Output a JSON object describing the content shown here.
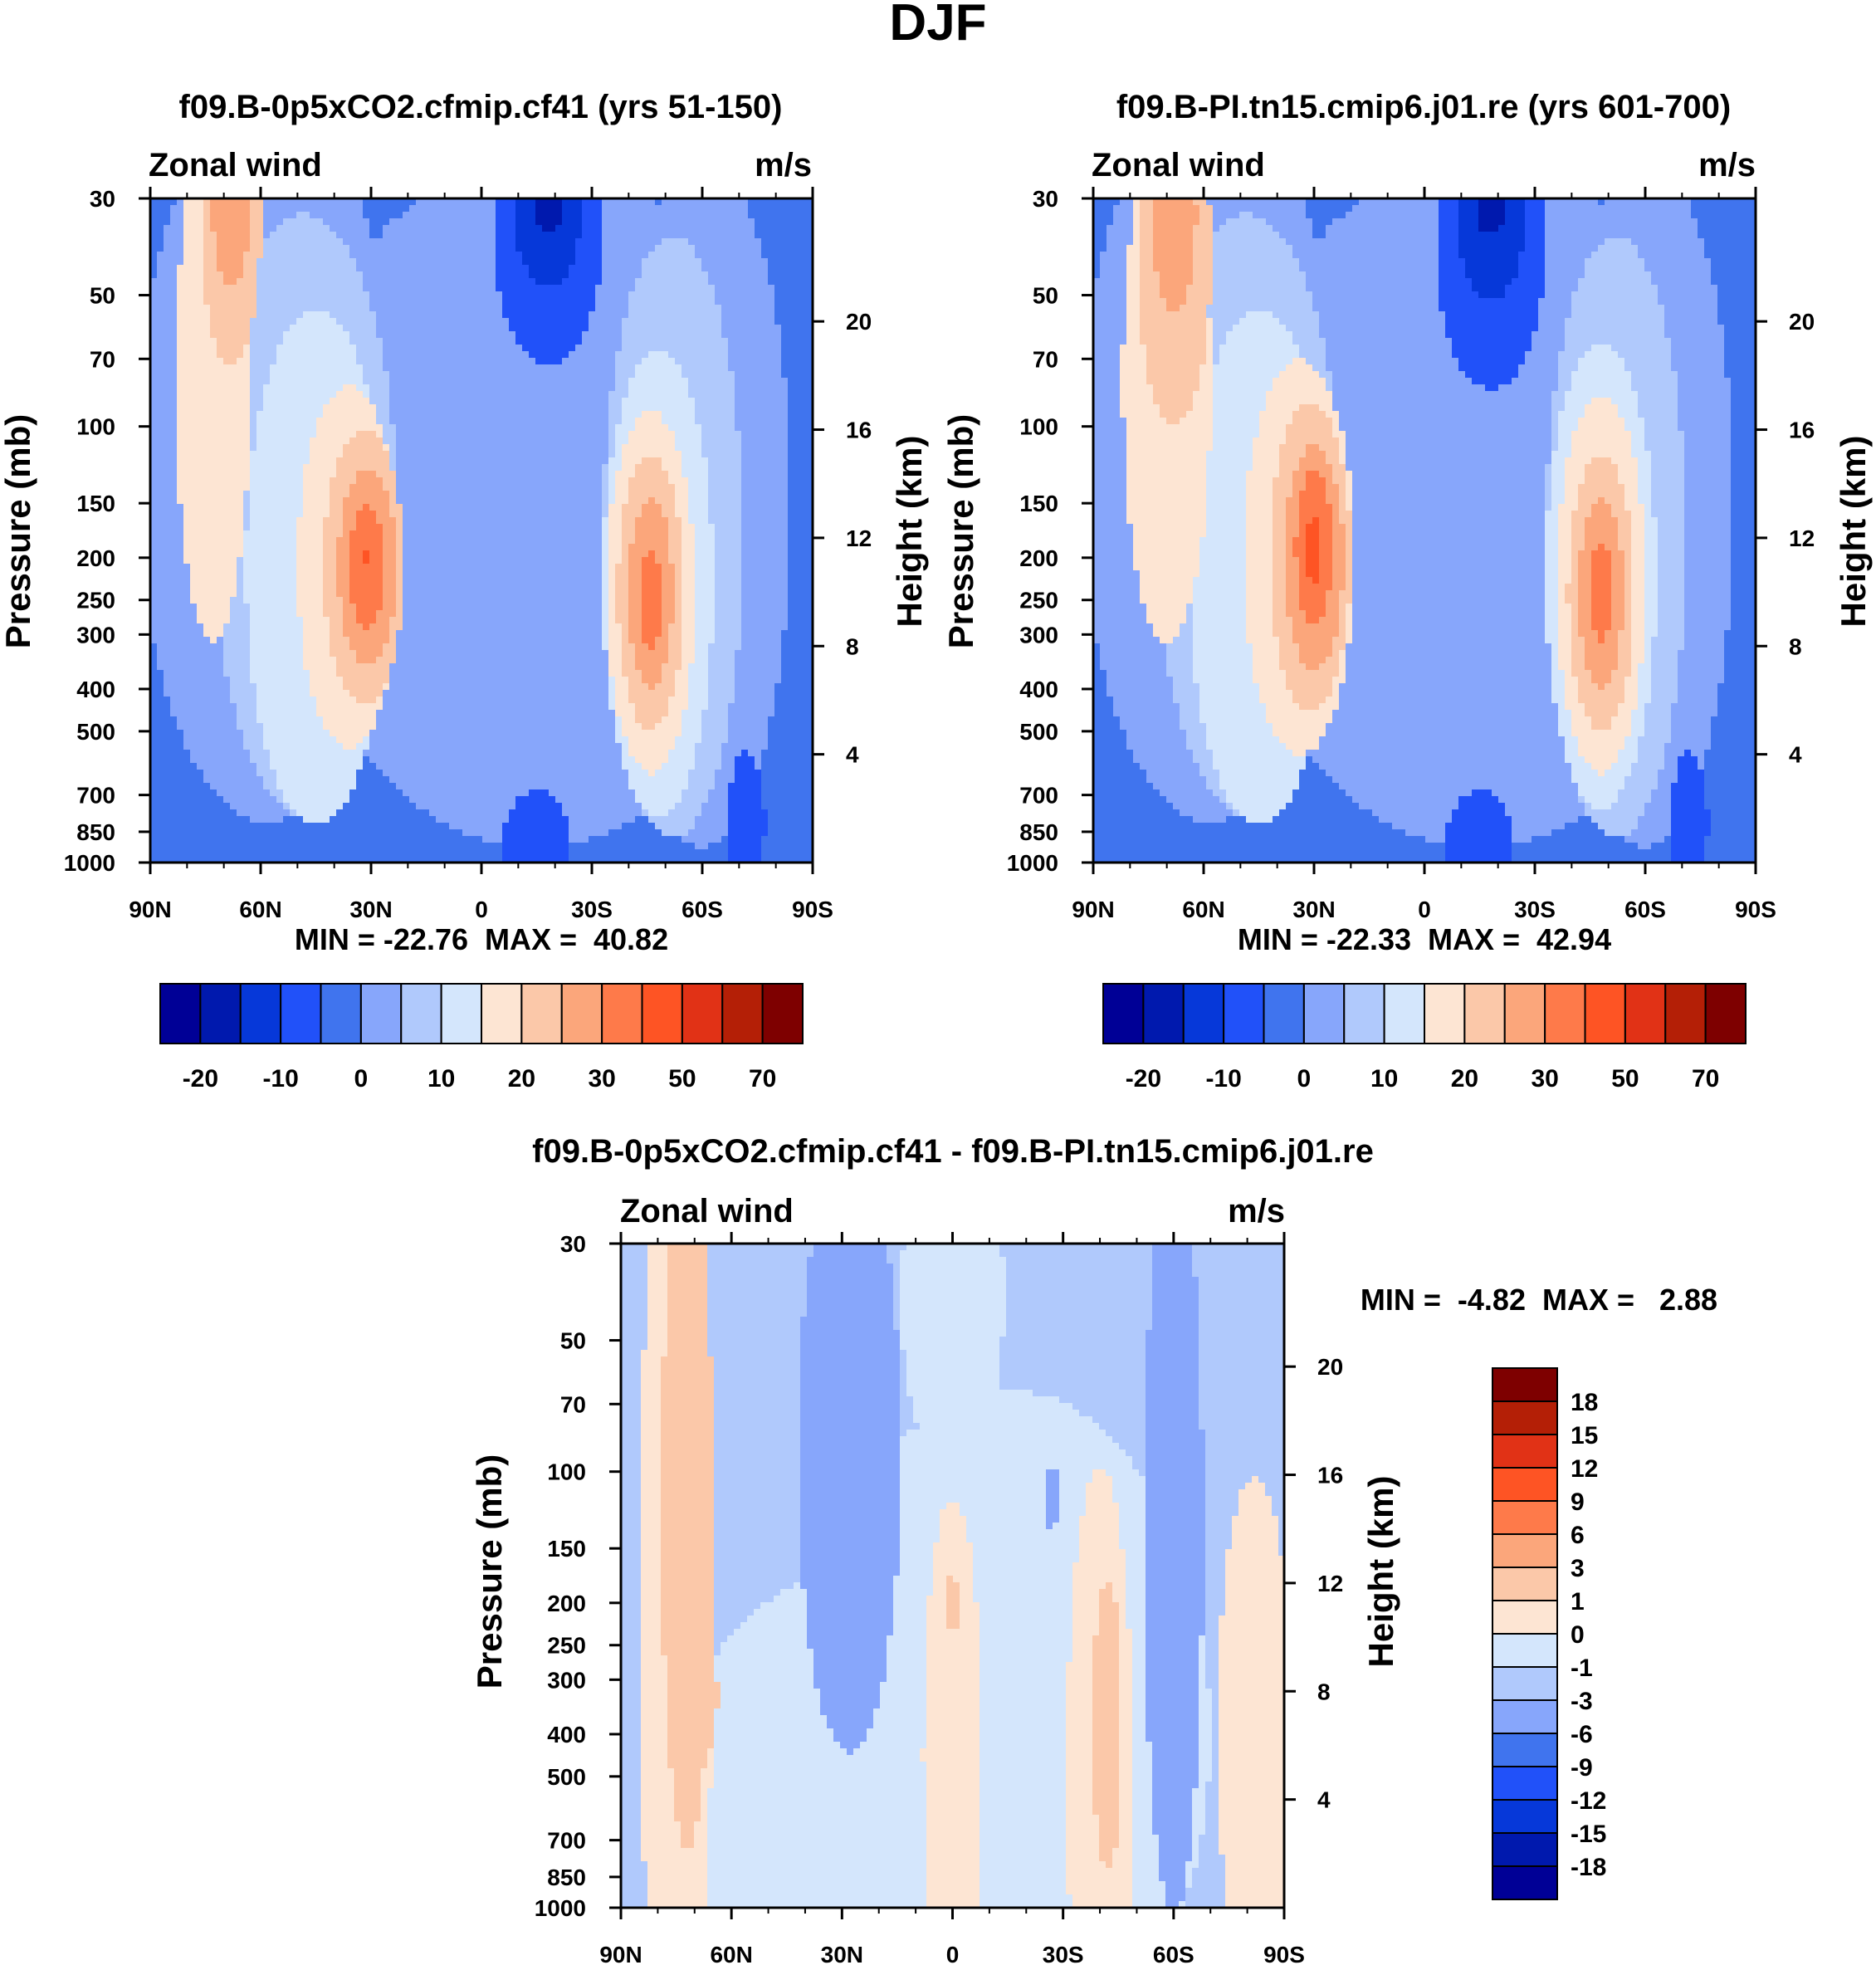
{
  "figure_title": "DJF",
  "colors": {
    "scale": [
      "#000096",
      "#0019AE",
      "#0638D9",
      "#2151F9",
      "#4074EE",
      "#87A6FB",
      "#B0C9FC",
      "#D4E6FC",
      "#FDE5D3",
      "#FBC8A9",
      "#FBA67B",
      "#FE7A4A",
      "#FE5424",
      "#E13216",
      "#B41F06",
      "#7E0000"
    ],
    "diff_scale": [
      "#000096",
      "#0019AE",
      "#0638D9",
      "#2151F9",
      "#4074EE",
      "#87A6FB",
      "#B0C9FC",
      "#D4E6FC",
      "#FDE5D3",
      "#FBC8A9",
      "#FBA67B",
      "#FE7A4A",
      "#FE5424",
      "#E13216",
      "#B41F06",
      "#7E0000"
    ]
  },
  "chart_data": [
    {
      "type": "heatmap",
      "title": "f09.B-0p5xCO2.cfmip.cf41 (yrs 51-150)",
      "left_label": "Zonal wind",
      "right_label": "m/s",
      "ylabel": "Pressure (mb)",
      "ylabel_right": "Height (km)",
      "xlabel": "",
      "x_range": [
        -90,
        90
      ],
      "x_ticks": [
        -90,
        -60,
        -30,
        0,
        30,
        60,
        90
      ],
      "x_tick_labels": [
        "90N",
        "60N",
        "30N",
        "0",
        "30S",
        "60S",
        "90S"
      ],
      "y_range_mb": [
        1000,
        30
      ],
      "y_ticks": [
        30,
        50,
        70,
        100,
        150,
        200,
        250,
        300,
        400,
        500,
        700,
        850,
        1000
      ],
      "y_tick_labels": [
        "30",
        "50",
        "70",
        "100",
        "150",
        "200",
        "250",
        "300",
        "400",
        "500",
        "700",
        "850",
        "1000"
      ],
      "height_ticks_km": [
        4,
        8,
        12,
        16,
        20
      ],
      "height_tick_labels": [
        "4",
        "8",
        "12",
        "16",
        "20"
      ],
      "stats_text": "MIN = -22.76  MAX =  40.82",
      "min": -22.76,
      "max": 40.82,
      "background_level": 4,
      "features": [
        {
          "level": 5,
          "lat": 15,
          "p": 150,
          "wlat": 68,
          "wlp": 4.0
        },
        {
          "level": 3,
          "lat": 18,
          "p": 35,
          "wlat": 15,
          "wlp": 1.6
        },
        {
          "level": 2,
          "lat": 18,
          "p": 33,
          "wlat": 9,
          "wlp": 0.8
        },
        {
          "level": 1,
          "lat": 18,
          "p": 31,
          "wlat": 4,
          "wlp": 0.3
        },
        {
          "level": 3,
          "lat": 15,
          "p": 900,
          "wlat": 9,
          "wlp": 0.6
        },
        {
          "level": 5,
          "lat": -58,
          "p": 120,
          "wlat": 36,
          "wlp": 4.2
        },
        {
          "level": 6,
          "lat": -48,
          "p": 160,
          "wlat": 25,
          "wlp": 3.5
        },
        {
          "level": 7,
          "lat": -45,
          "p": 210,
          "wlat": 19,
          "wlp": 3.0
        },
        {
          "level": 8,
          "lat": -36,
          "p": 210,
          "wlat": 14,
          "wlp": 2.1
        },
        {
          "level": 9,
          "lat": -32,
          "p": 210,
          "wlat": 11,
          "wlp": 1.6
        },
        {
          "level": 10,
          "lat": -31,
          "p": 210,
          "wlat": 8,
          "wlp": 1.15
        },
        {
          "level": 11,
          "lat": -31,
          "p": 210,
          "wlat": 5,
          "wlp": 0.7
        },
        {
          "level": 12,
          "lat": -31,
          "p": 200,
          "wlat": 1.2,
          "wlp": 0.1
        },
        {
          "level": 8,
          "lat": -73,
          "p": 80,
          "wlat": 10,
          "wlp": 3.0
        },
        {
          "level": 9,
          "lat": -68,
          "p": 35,
          "wlat": 8,
          "wlp": 1.6
        },
        {
          "level": 10,
          "lat": -68,
          "p": 32,
          "wlat": 5,
          "wlp": 0.9
        },
        {
          "level": 5,
          "lat": 60,
          "p": 150,
          "wlat": 24,
          "wlp": 4.0
        },
        {
          "level": 6,
          "lat": 52,
          "p": 180,
          "wlat": 19,
          "wlp": 3.5
        },
        {
          "level": 7,
          "lat": 48,
          "p": 230,
          "wlat": 15,
          "wlp": 2.7
        },
        {
          "level": 8,
          "lat": 46,
          "p": 240,
          "wlat": 12,
          "wlp": 2.1
        },
        {
          "level": 9,
          "lat": 46,
          "p": 240,
          "wlat": 9,
          "wlp": 1.6
        },
        {
          "level": 10,
          "lat": 46,
          "p": 240,
          "wlat": 6,
          "wlp": 1.1
        },
        {
          "level": 11,
          "lat": 46,
          "p": 250,
          "wlat": 3,
          "wlp": 0.6
        },
        {
          "level": 3,
          "lat": 72,
          "p": 800,
          "wlat": 5,
          "wlp": 0.8
        }
      ]
    },
    {
      "type": "heatmap",
      "title": "f09.B-PI.tn15.cmip6.j01.re (yrs 601-700)",
      "left_label": "Zonal wind",
      "right_label": "m/s",
      "ylabel": "Pressure (mb)",
      "ylabel_right": "Height (km)",
      "xlabel": "",
      "x_range": [
        -90,
        90
      ],
      "x_ticks": [
        -90,
        -60,
        -30,
        0,
        30,
        60,
        90
      ],
      "x_tick_labels": [
        "90N",
        "60N",
        "30N",
        "0",
        "30S",
        "60S",
        "90S"
      ],
      "y_range_mb": [
        1000,
        30
      ],
      "y_ticks": [
        30,
        50,
        70,
        100,
        150,
        200,
        250,
        300,
        400,
        500,
        700,
        850,
        1000
      ],
      "y_tick_labels": [
        "30",
        "50",
        "70",
        "100",
        "150",
        "200",
        "250",
        "300",
        "400",
        "500",
        "700",
        "850",
        "1000"
      ],
      "height_ticks_km": [
        4,
        8,
        12,
        16,
        20
      ],
      "height_tick_labels": [
        "4",
        "8",
        "12",
        "16",
        "20"
      ],
      "stats_text": "MIN = -22.33  MAX =  42.94",
      "min": -22.33,
      "max": 42.94,
      "background_level": 4,
      "features": [
        {
          "level": 5,
          "lat": 15,
          "p": 150,
          "wlat": 68,
          "wlp": 4.0
        },
        {
          "level": 3,
          "lat": 18,
          "p": 38,
          "wlat": 15,
          "wlp": 1.7
        },
        {
          "level": 2,
          "lat": 18,
          "p": 34,
          "wlat": 9,
          "wlp": 0.9
        },
        {
          "level": 1,
          "lat": 18,
          "p": 31,
          "wlat": 4,
          "wlp": 0.35
        },
        {
          "level": 3,
          "lat": 15,
          "p": 900,
          "wlat": 9,
          "wlp": 0.6
        },
        {
          "level": 5,
          "lat": -58,
          "p": 120,
          "wlat": 36,
          "wlp": 4.2
        },
        {
          "level": 6,
          "lat": -48,
          "p": 160,
          "wlat": 25,
          "wlp": 3.5
        },
        {
          "level": 7,
          "lat": -45,
          "p": 210,
          "wlat": 19,
          "wlp": 3.0
        },
        {
          "level": 8,
          "lat": -34,
          "p": 200,
          "wlat": 15,
          "wlp": 2.3
        },
        {
          "level": 9,
          "lat": -31,
          "p": 200,
          "wlat": 11,
          "wlp": 1.8
        },
        {
          "level": 10,
          "lat": -30,
          "p": 200,
          "wlat": 8,
          "wlp": 1.3
        },
        {
          "level": 11,
          "lat": -30,
          "p": 190,
          "wlat": 5,
          "wlp": 0.9
        },
        {
          "level": 12,
          "lat": -30,
          "p": 190,
          "wlat": 2.2,
          "wlp": 0.4
        },
        {
          "level": 8,
          "lat": -70,
          "p": 80,
          "wlat": 12,
          "wlp": 3.0
        },
        {
          "level": 9,
          "lat": -68,
          "p": 40,
          "wlat": 10,
          "wlp": 2.0
        },
        {
          "level": 10,
          "lat": -68,
          "p": 33,
          "wlat": 6,
          "wlp": 1.1
        },
        {
          "level": 5,
          "lat": 60,
          "p": 150,
          "wlat": 24,
          "wlp": 4.0
        },
        {
          "level": 6,
          "lat": 52,
          "p": 180,
          "wlat": 19,
          "wlp": 3.5
        },
        {
          "level": 7,
          "lat": 48,
          "p": 220,
          "wlat": 15,
          "wlp": 2.7
        },
        {
          "level": 8,
          "lat": 48,
          "p": 230,
          "wlat": 12,
          "wlp": 2.2
        },
        {
          "level": 9,
          "lat": 48,
          "p": 240,
          "wlat": 9,
          "wlp": 1.6
        },
        {
          "level": 10,
          "lat": 48,
          "p": 240,
          "wlat": 6,
          "wlp": 1.1
        },
        {
          "level": 11,
          "lat": 48,
          "p": 240,
          "wlat": 2.8,
          "wlp": 0.6
        },
        {
          "level": 3,
          "lat": 72,
          "p": 800,
          "wlat": 5,
          "wlp": 0.8
        }
      ]
    },
    {
      "type": "heatmap",
      "title": "f09.B-0p5xCO2.cfmip.cf41 - f09.B-PI.tn15.cmip6.j01.re",
      "left_label": "Zonal wind",
      "right_label": "m/s",
      "ylabel": "Pressure (mb)",
      "ylabel_right": "Height (km)",
      "xlabel": "",
      "x_range": [
        -90,
        90
      ],
      "x_ticks": [
        -90,
        -60,
        -30,
        0,
        30,
        60,
        90
      ],
      "x_tick_labels": [
        "90N",
        "60N",
        "30N",
        "0",
        "30S",
        "60S",
        "90S"
      ],
      "y_range_mb": [
        1000,
        30
      ],
      "y_ticks": [
        30,
        50,
        70,
        100,
        150,
        200,
        250,
        300,
        400,
        500,
        700,
        850,
        1000
      ],
      "y_tick_labels": [
        "30",
        "50",
        "70",
        "100",
        "150",
        "200",
        "250",
        "300",
        "400",
        "500",
        "700",
        "850",
        "1000"
      ],
      "height_ticks_km": [
        4,
        8,
        12,
        16,
        20
      ],
      "height_tick_labels": [
        "4",
        "8",
        "12",
        "16",
        "20"
      ],
      "stats_text": "MIN =  -4.82  MAX =   2.88",
      "min": -4.82,
      "max": 2.88,
      "background_level": 6,
      "features": [
        {
          "level": 7,
          "lat": -20,
          "p": 700,
          "wlat": 60,
          "wlp": 3.2
        },
        {
          "level": 7,
          "lat": 15,
          "p": 400,
          "wlat": 55,
          "wlp": 4.0
        },
        {
          "level": 7,
          "lat": 0,
          "p": 40,
          "wlat": 14,
          "wlp": 2.0
        },
        {
          "level": 8,
          "lat": -75,
          "p": 200,
          "wlat": 10,
          "wlp": 6.0
        },
        {
          "level": 9,
          "lat": -72,
          "p": 120,
          "wlat": 7,
          "wlp": 4.0
        },
        {
          "level": 9,
          "lat": -66,
          "p": 330,
          "wlat": 2.2,
          "wlp": 0.6
        },
        {
          "level": 8,
          "lat": 0,
          "p": 450,
          "wlat": 8,
          "wlp": 3.0
        },
        {
          "level": 9,
          "lat": 0,
          "p": 200,
          "wlat": 2.5,
          "wlp": 0.3
        },
        {
          "level": 8,
          "lat": 40,
          "p": 500,
          "wlat": 9,
          "wlp": 3.6
        },
        {
          "level": 9,
          "lat": 42,
          "p": 380,
          "wlat": 4,
          "wlp": 1.7
        },
        {
          "level": 8,
          "lat": 82,
          "p": 400,
          "wlat": 10,
          "wlp": 3.0
        },
        {
          "level": 5,
          "lat": -28,
          "p": 90,
          "wlat": 14,
          "wlp": 3.5
        },
        {
          "level": 5,
          "lat": 60,
          "p": 140,
          "wlat": 8,
          "wlp": 4.4
        },
        {
          "level": 5,
          "lat": 27,
          "p": 115,
          "wlat": 2,
          "wlp": 0.35
        }
      ],
      "colorbar_labels": [
        "-18",
        "-15",
        "-12",
        "-9",
        "-6",
        "-3",
        "-1",
        "0",
        "1",
        "3",
        "6",
        "9",
        "12",
        "15",
        "18"
      ]
    }
  ],
  "colorbar_top_labels": [
    "-20",
    "-10",
    "0",
    "10",
    "20",
    "30",
    "50",
    "70"
  ]
}
